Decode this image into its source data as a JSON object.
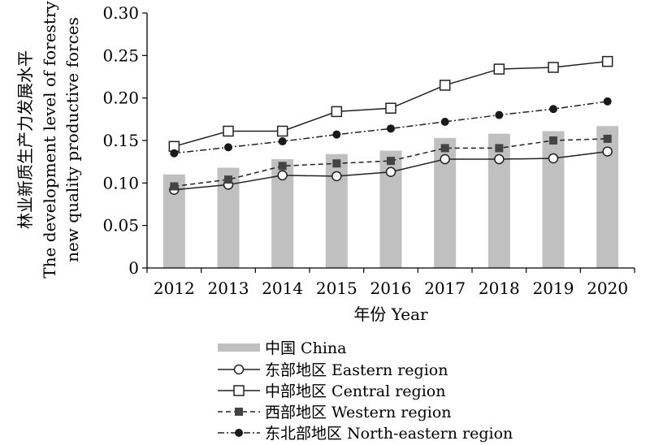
{
  "chart_data": {
    "type": "bar",
    "categories": [
      "2012",
      "2013",
      "2014",
      "2015",
      "2016",
      "2017",
      "2018",
      "2019",
      "2020"
    ],
    "xlabel": "年份 Year",
    "ylabel_lines": [
      "林业新质生产力发展水平",
      "The development level of forestry",
      "new quality productive forces"
    ],
    "ylim": [
      0,
      0.3
    ],
    "yticks": [
      "0",
      "0.05",
      "0.10",
      "0.15",
      "0.20",
      "0.25",
      "0.30"
    ],
    "grid": false,
    "legend_position": "bottom",
    "colors": {
      "bar": "#c0c0c0",
      "line": "#222222",
      "marker_fill_dark": "#1a1a1a",
      "series_square_dark": "#444444"
    },
    "series": [
      {
        "name": "中国 China",
        "kind": "bar",
        "values": [
          0.11,
          0.118,
          0.128,
          0.134,
          0.138,
          0.153,
          0.158,
          0.161,
          0.167
        ]
      },
      {
        "name": "东部地区 Eastern region",
        "kind": "line",
        "marker": "open-circle",
        "dash": "solid",
        "values": [
          0.092,
          0.098,
          0.109,
          0.108,
          0.113,
          0.128,
          0.128,
          0.129,
          0.137
        ]
      },
      {
        "name": "中部地区 Central region",
        "kind": "line",
        "marker": "open-square",
        "dash": "solid",
        "values": [
          0.143,
          0.161,
          0.161,
          0.184,
          0.188,
          0.215,
          0.234,
          0.236,
          0.243
        ]
      },
      {
        "name": "西部地区 Western region",
        "kind": "line",
        "marker": "filled-square",
        "dash": "dashed",
        "values": [
          0.096,
          0.104,
          0.12,
          0.123,
          0.126,
          0.141,
          0.141,
          0.15,
          0.152
        ]
      },
      {
        "name": "东北部地区 North-eastern region",
        "kind": "line",
        "marker": "filled-circle",
        "dash": "dashdot",
        "values": [
          0.135,
          0.142,
          0.149,
          0.157,
          0.164,
          0.172,
          0.18,
          0.187,
          0.196
        ]
      }
    ]
  }
}
